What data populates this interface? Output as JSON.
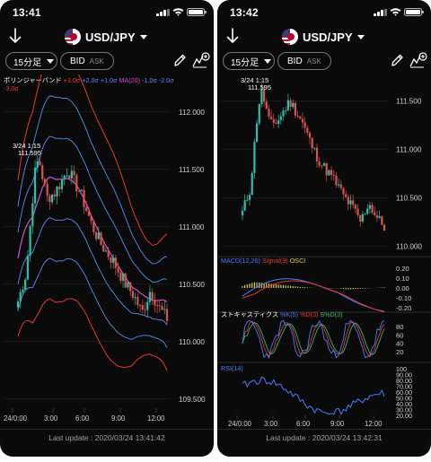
{
  "phones": [
    {
      "time": "13:41",
      "pair": "USD/JPY",
      "timeframe": "15分足",
      "bid_label": "BID",
      "ask_label": "ASK",
      "indicator": {
        "name": "ボリンジャーバンド",
        "params": [
          {
            "text": "+3.0σ",
            "color": "#e53935"
          },
          {
            "text": "+2.0σ",
            "color": "#5b8def"
          },
          {
            "text": "+1.0σ",
            "color": "#5b8def"
          },
          {
            "text": "MA(20)",
            "color": "#d04fd0"
          },
          {
            "text": "-1.0σ",
            "color": "#5b8def"
          },
          {
            "text": "-2.0σ",
            "color": "#5b8def"
          },
          {
            "text": "-3.0σ",
            "color": "#e53935"
          }
        ]
      },
      "price_ticks": [
        "112.000",
        "111.500",
        "111.000",
        "110.500",
        "110.000",
        "109.500"
      ],
      "high_marker": {
        "date": "3/24 1:15",
        "price": "111.595"
      },
      "time_ticks": [
        "24/0:00",
        "3:00",
        "6:00",
        "9:00",
        "12:00"
      ],
      "last_update": "Last update : 2020/03/24 13:41:42"
    },
    {
      "time": "13:42",
      "pair": "USD/JPY",
      "timeframe": "15分足",
      "bid_label": "BID",
      "ask_label": "ASK",
      "price_ticks": [
        "111.500",
        "111.000",
        "110.500",
        "110.000"
      ],
      "high_marker": {
        "date": "3/24 1:15",
        "price": "111.595"
      },
      "macd": {
        "title": "MACD(12,26)",
        "signal": "Signal(9)",
        "osci": "OSCI",
        "ticks": [
          "0.20",
          "0.10",
          "0.00",
          "-0.10",
          "-0.20"
        ]
      },
      "stoch": {
        "title": "ストキャスティクス",
        "k": "%K(5)",
        "d": "%D(3)",
        "sd": "S%D(3)",
        "ticks": [
          "80",
          "60",
          "40",
          "20"
        ]
      },
      "rsi": {
        "title": "RSI(14)",
        "ticks": [
          "100",
          "90.00",
          "80.00",
          "70.00",
          "60.00",
          "50.00",
          "40.00",
          "30.00",
          "20.00"
        ]
      },
      "time_ticks": [
        "24/0:00",
        "3:00",
        "6:00",
        "9:00",
        "12:00"
      ],
      "last_update": "Last update : 2020/03/24 13:42:31"
    }
  ],
  "colors": {
    "candle_up": "#2fbfa7",
    "candle_down": "#d9534f",
    "band3": "#e53935",
    "band2": "#5b8def",
    "ma": "#d04fd0",
    "macd": "#4a7dff",
    "signal": "#e53935",
    "osci": "#e0d040",
    "k": "#4a7dff",
    "d": "#e53935",
    "sd": "#30c060",
    "rsi": "#4a7dff"
  }
}
